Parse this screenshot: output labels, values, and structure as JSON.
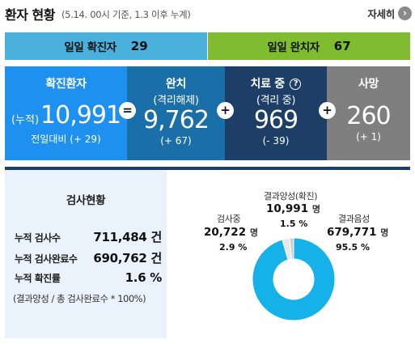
{
  "header": {
    "title": "환자 현황",
    "subtitle": "(5.14. 00시 기준, 1.3 이후 누계)",
    "more_label": "자세히",
    "more_icon": "chevron-right-icon"
  },
  "daily": {
    "confirmed_label": "일일 확진자",
    "confirmed_value": "29",
    "released_label": "일일 완치자",
    "released_value": "67"
  },
  "cards": {
    "confirmed": {
      "title": "확진환자",
      "prefix": "(누적)",
      "value": "10,991",
      "delta": "전일대비 (+ 29)"
    },
    "released": {
      "title": "완치",
      "sub": "(격리해제)",
      "value": "9,762",
      "delta": "(+ 67)"
    },
    "treating": {
      "title": "치료 중",
      "sub": "(격리 중)",
      "value": "969",
      "delta": "(- 39)",
      "help_icon": "?"
    },
    "deaths": {
      "title": "사망",
      "value": "260",
      "delta": "(+ 1)"
    }
  },
  "operators": {
    "equals": "=",
    "plus1": "+",
    "plus2": "+",
    "plus3": "+"
  },
  "tests": {
    "title": "검사현황",
    "rows": [
      {
        "label": "누적 검사수",
        "value": "711,484 건"
      },
      {
        "label": "누적 검사완료수",
        "value": "690,762 건"
      },
      {
        "label": "누적 확진률",
        "value": "1.6 %"
      }
    ],
    "note": "(결과양성 / 총 검사완료수 * 100%)"
  },
  "chart_data": {
    "type": "pie",
    "categories": [
      "결과양성(확진)",
      "검사중",
      "결과음성"
    ],
    "values": [
      10991,
      20722,
      679771
    ],
    "units": [
      "명",
      "명",
      "명"
    ],
    "percents": [
      "1.5 %",
      "2.9 %",
      "95.5 %"
    ],
    "value_labels": [
      "10,991",
      "20,722",
      "679,771"
    ],
    "colors": [
      "#cccccc",
      "#e8e8e8",
      "#14b2e8"
    ]
  },
  "colors": {
    "daily_confirmed": "#4ab1dd",
    "daily_released": "#7fbc2f",
    "card_confirmed": "#1e91f0",
    "card_released": "#1b6fa8",
    "card_treating": "#1d3f67",
    "card_deaths": "#7f7f7f"
  }
}
